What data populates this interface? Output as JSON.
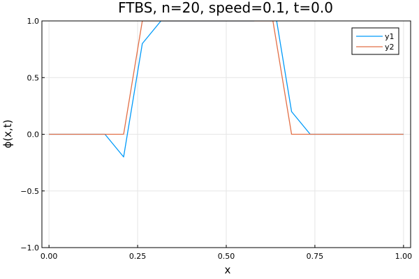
{
  "chart_data": {
    "type": "line",
    "title": "FTBS, n=20, speed=0.1, t=0.0",
    "xlabel": "x",
    "ylabel": "ϕ(x,t)",
    "xlim": [
      -0.02,
      1.02
    ],
    "ylim": [
      -1.0,
      1.0
    ],
    "xticks": [
      0.0,
      0.25,
      0.5,
      0.75,
      1.0
    ],
    "xtick_labels": [
      "0.00",
      "0.25",
      "0.50",
      "0.75",
      "1.00"
    ],
    "yticks": [
      -1.0,
      -0.5,
      0.0,
      0.5,
      1.0
    ],
    "ytick_labels": [
      "−1.0",
      "−0.5",
      "0.0",
      "0.5",
      "1.0"
    ],
    "grid": true,
    "legend_position": "top-right",
    "x": [
      0.0,
      0.0526,
      0.1053,
      0.1579,
      0.2105,
      0.2632,
      0.3158,
      0.3684,
      0.4211,
      0.4737,
      0.5263,
      0.5789,
      0.6316,
      0.6842,
      0.7368,
      0.7895,
      0.8421,
      0.8947,
      0.9474,
      1.0
    ],
    "series": [
      {
        "name": "y1",
        "color": "#009af9",
        "values": [
          0.0,
          0.0,
          0.0,
          0.0,
          -0.2,
          0.8,
          1.0,
          1.0,
          1.0,
          1.0,
          1.0,
          1.0,
          1.2,
          0.2,
          0.0,
          0.0,
          0.0,
          0.0,
          0.0,
          0.0
        ]
      },
      {
        "name": "y2",
        "color": "#e26f46",
        "values": [
          0.0,
          0.0,
          0.0,
          0.0,
          0.0,
          1.0,
          1.0,
          1.0,
          1.0,
          1.0,
          1.0,
          1.0,
          1.0,
          0.0,
          0.0,
          0.0,
          0.0,
          0.0,
          0.0,
          0.0
        ]
      }
    ]
  }
}
